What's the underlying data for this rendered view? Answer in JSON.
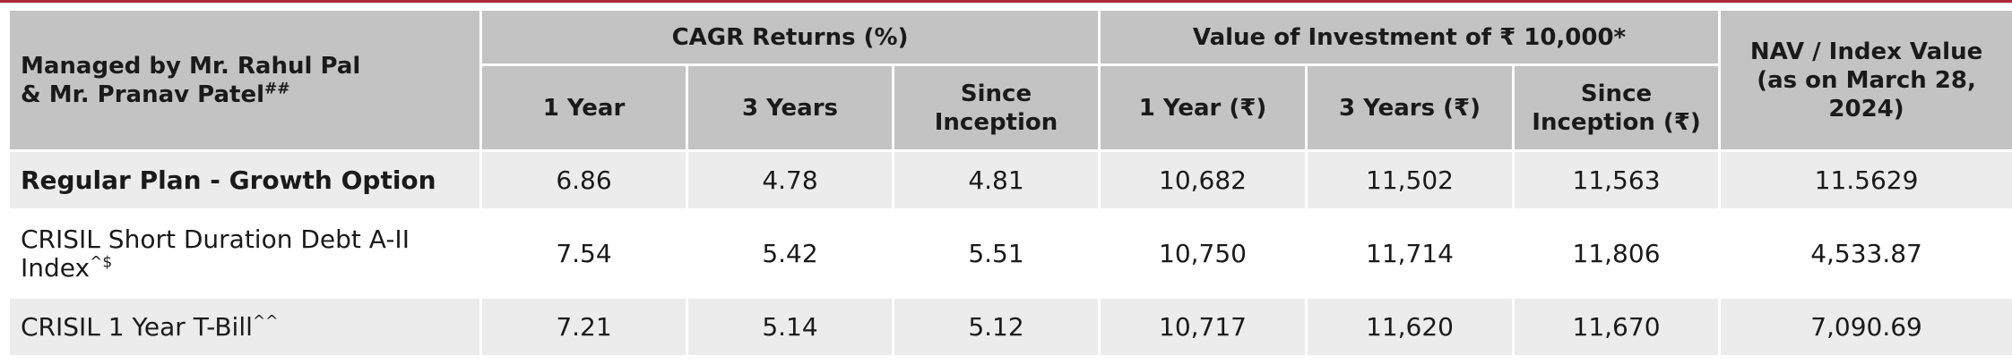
{
  "header": {
    "manager_line1": "Managed by Mr. Rahul Pal",
    "manager_line2": "& Mr. Pranav Patel",
    "manager_sup": "##",
    "cagr_group": "CAGR Returns (%)",
    "value_group": "Value of Investment of ₹ 10,000*",
    "nav_line1": "NAV / Index Value",
    "nav_line2": "(as on March 28,",
    "nav_line3": "2024)",
    "cagr_cols": [
      [
        "1 Year"
      ],
      [
        "3 Years"
      ],
      [
        "Since",
        "Inception"
      ]
    ],
    "value_cols": [
      [
        "1 Year (₹)"
      ],
      [
        "3 Years (₹)"
      ],
      [
        "Since",
        "Inception (₹)"
      ]
    ]
  },
  "rows": [
    {
      "label": "Regular Plan - Growth Option",
      "label_sup": "",
      "cagr": [
        "6.86",
        "4.78",
        "4.81"
      ],
      "value": [
        "10,682",
        "11,502",
        "11,563"
      ],
      "nav": "11.5629"
    },
    {
      "label": "CRISIL Short Duration Debt A-II Index",
      "label_sup": "^$",
      "cagr": [
        "7.54",
        "5.42",
        "5.51"
      ],
      "value": [
        "10,750",
        "11,714",
        "11,806"
      ],
      "nav": "4,533.87"
    },
    {
      "label": "CRISIL 1 Year T-Bill",
      "label_sup": "^^",
      "cagr": [
        "7.21",
        "5.14",
        "5.12"
      ],
      "value": [
        "10,717",
        "11,620",
        "11,670"
      ],
      "nav": "7,090.69"
    }
  ]
}
